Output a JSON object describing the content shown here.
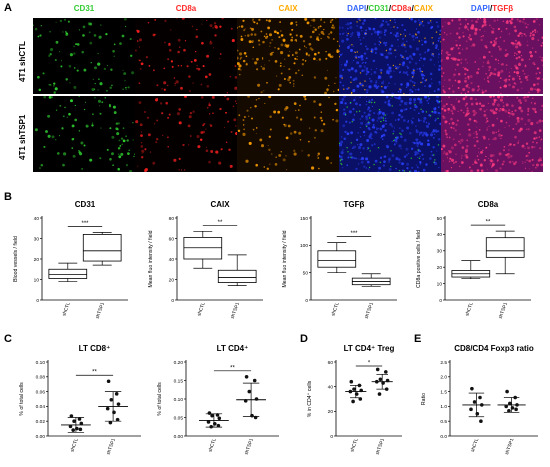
{
  "panel_letters": {
    "a": "A",
    "b": "B",
    "c": "C",
    "d": "D",
    "e": "E"
  },
  "ihc": {
    "columns": [
      {
        "parts": [
          {
            "text": "CD31",
            "color": "#33cc33"
          }
        ],
        "bg": "#000000",
        "dot_color": "#33dd33"
      },
      {
        "parts": [
          {
            "text": "CD8a",
            "color": "#ff2a2a"
          }
        ],
        "bg": "#050000",
        "dot_color": "#ff2020"
      },
      {
        "parts": [
          {
            "text": "CAIX",
            "color": "#ffaa00"
          }
        ],
        "bg": "#140a00",
        "dot_color": "#ffa000"
      },
      {
        "parts": [
          {
            "text": "DAPI",
            "color": "#3366ff"
          },
          {
            "text": "/",
            "color": "#000000"
          },
          {
            "text": "CD31",
            "color": "#33cc33"
          },
          {
            "text": "/",
            "color": "#000000"
          },
          {
            "text": "CD8a",
            "color": "#ff2a2a"
          },
          {
            "text": "/",
            "color": "#000000"
          },
          {
            "text": "CAIX",
            "color": "#ffaa00"
          }
        ],
        "bg": "#0a1066",
        "dot_color": "#2a40ff"
      },
      {
        "parts": [
          {
            "text": "DAPI",
            "color": "#3366ff"
          },
          {
            "text": "/",
            "color": "#000000"
          },
          {
            "text": "TGFβ",
            "color": "#ff2a2a"
          }
        ],
        "bg": "#6a1060",
        "dot_color": "#ff3a80"
      }
    ],
    "rows": [
      "4T1 shCTL",
      "4T1 shTSP1"
    ]
  },
  "chart_data": [
    {
      "panel": "B",
      "type": "box",
      "title": "CD31",
      "ylabel": "Blood vessels / field",
      "categories": [
        "shCTL",
        "shTSP1"
      ],
      "yticks": [
        "0",
        "10",
        "20",
        "30",
        "40"
      ],
      "ylim": [
        0,
        40
      ],
      "boxes": [
        {
          "min": 9,
          "q1": 10.5,
          "median": 12.5,
          "q3": 15,
          "max": 18
        },
        {
          "min": 17,
          "q1": 19,
          "median": 24,
          "q3": 32,
          "max": 33
        }
      ],
      "significance": "***"
    },
    {
      "panel": "B",
      "type": "box",
      "title": "CAIX",
      "ylabel": "Mean fluo intensity / field",
      "categories": [
        "shCTL",
        "shTSP1"
      ],
      "yticks": [
        "0",
        "20",
        "40",
        "60",
        "80"
      ],
      "ylim": [
        0,
        80
      ],
      "boxes": [
        {
          "min": 31,
          "q1": 40,
          "median": 51,
          "q3": 61,
          "max": 67
        },
        {
          "min": 14,
          "q1": 17,
          "median": 22,
          "q3": 29,
          "max": 44
        }
      ],
      "significance": "**"
    },
    {
      "panel": "B",
      "type": "box",
      "title": "TGFβ",
      "ylabel": "Mean fluo intensity / field",
      "categories": [
        "shCTL",
        "shTSP1"
      ],
      "yticks": [
        "0",
        "50",
        "100",
        "150"
      ],
      "ylim": [
        0,
        150
      ],
      "boxes": [
        {
          "min": 50,
          "q1": 60,
          "median": 72,
          "q3": 90,
          "max": 105
        },
        {
          "min": 25,
          "q1": 28,
          "median": 34,
          "q3": 40,
          "max": 48
        }
      ],
      "significance": "***"
    },
    {
      "panel": "B",
      "type": "box",
      "title": "CD8a",
      "ylabel": "CD8a positive cells / field",
      "categories": [
        "shCTL",
        "shTSP1"
      ],
      "yticks": [
        "0",
        "10",
        "20",
        "30",
        "40",
        "50"
      ],
      "ylim": [
        0,
        50
      ],
      "boxes": [
        {
          "min": 13,
          "q1": 14,
          "median": 16,
          "q3": 18,
          "max": 24
        },
        {
          "min": 16,
          "q1": 26,
          "median": 30,
          "q3": 38,
          "max": 42
        }
      ],
      "significance": "**"
    },
    {
      "panel": "C",
      "type": "scatter",
      "title": "LT CD8⁺",
      "ylabel": "% of total cells",
      "categories": [
        "shCTL",
        "shTSP1"
      ],
      "yticks": [
        "0.00",
        "0.02",
        "0.04",
        "0.06",
        "0.08",
        "0.10"
      ],
      "ylim": [
        0,
        0.1
      ],
      "groups": [
        {
          "points": [
            0.027,
            0.023,
            0.02,
            0.017,
            0.013,
            0.01,
            0.009,
            0.008
          ],
          "mean": 0.015,
          "sd": 0.01
        },
        {
          "points": [
            0.074,
            0.057,
            0.049,
            0.043,
            0.037,
            0.032,
            0.022,
            0.018
          ],
          "mean": 0.04,
          "sd": 0.02
        }
      ],
      "significance": "**"
    },
    {
      "panel": "C",
      "type": "scatter",
      "title": "LT CD4⁺",
      "ylabel": "% of total cells",
      "categories": [
        "shCTL",
        "shTSP1"
      ],
      "yticks": [
        "0.00",
        "0.05",
        "0.10",
        "0.15",
        "0.20"
      ],
      "ylim": [
        0,
        0.2
      ],
      "groups": [
        {
          "points": [
            0.062,
            0.057,
            0.055,
            0.048,
            0.038,
            0.033,
            0.028,
            0.025
          ],
          "mean": 0.042,
          "sd": 0.018
        },
        {
          "points": [
            0.16,
            0.15,
            0.12,
            0.1,
            0.095,
            0.055,
            0.05
          ],
          "mean": 0.098,
          "sd": 0.045
        }
      ],
      "significance": "**"
    },
    {
      "panel": "D",
      "type": "scatter",
      "title": "LT CD4⁺ Treg",
      "ylabel": "% in CD4⁺ cells",
      "categories": [
        "shCTL",
        "shTSP1"
      ],
      "yticks": [
        "0",
        "20",
        "40",
        "60"
      ],
      "ylim": [
        0,
        60
      ],
      "groups": [
        {
          "points": [
            44,
            41,
            38,
            37,
            36,
            34,
            30,
            28
          ],
          "mean": 36,
          "sd": 5
        },
        {
          "points": [
            54,
            52,
            46,
            45,
            44,
            43,
            38,
            34
          ],
          "mean": 44,
          "sd": 6
        }
      ],
      "significance": "*"
    },
    {
      "panel": "E",
      "type": "scatter",
      "title": "CD8/CD4 Foxp3 ratio",
      "ylabel": "Ratio",
      "categories": [
        "shCTL",
        "shTSP1"
      ],
      "yticks": [
        "0.0",
        "0.5",
        "1.0",
        "1.5",
        "2.0",
        "2.5"
      ],
      "ylim": [
        0,
        2.5
      ],
      "groups": [
        {
          "points": [
            1.6,
            1.3,
            1.15,
            1.05,
            0.9,
            0.75,
            0.5
          ],
          "mean": 1.05,
          "sd": 0.4
        },
        {
          "points": [
            1.5,
            1.3,
            1.1,
            1.05,
            1.0,
            0.95,
            0.9,
            0.85
          ],
          "mean": 1.05,
          "sd": 0.25
        }
      ],
      "significance": ""
    }
  ]
}
